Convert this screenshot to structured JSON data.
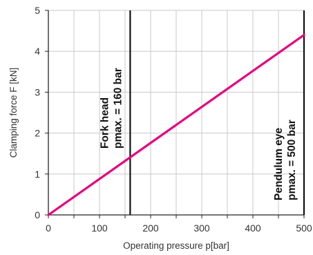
{
  "chart_data": {
    "type": "line",
    "xlabel": "Operating pressure p[bar]",
    "ylabel": "Clamping force F [kN]",
    "xlim": [
      0,
      500
    ],
    "ylim": [
      0,
      5
    ],
    "x_ticks": [
      "0",
      "100",
      "200",
      "300",
      "400",
      "500"
    ],
    "y_ticks": [
      "0",
      "1",
      "2",
      "3",
      "4",
      "5"
    ],
    "grid": true,
    "series": [
      {
        "x": [
          0,
          500
        ],
        "y": [
          0,
          4.4
        ],
        "color": "#e6007e"
      }
    ],
    "reference_lines": [
      {
        "x": 160,
        "line1": "Fork head",
        "line2": "pmax. = 160 bar"
      },
      {
        "x": 500,
        "line1": "Pendulum eye",
        "line2": "pmax. = 500 bar"
      }
    ]
  }
}
